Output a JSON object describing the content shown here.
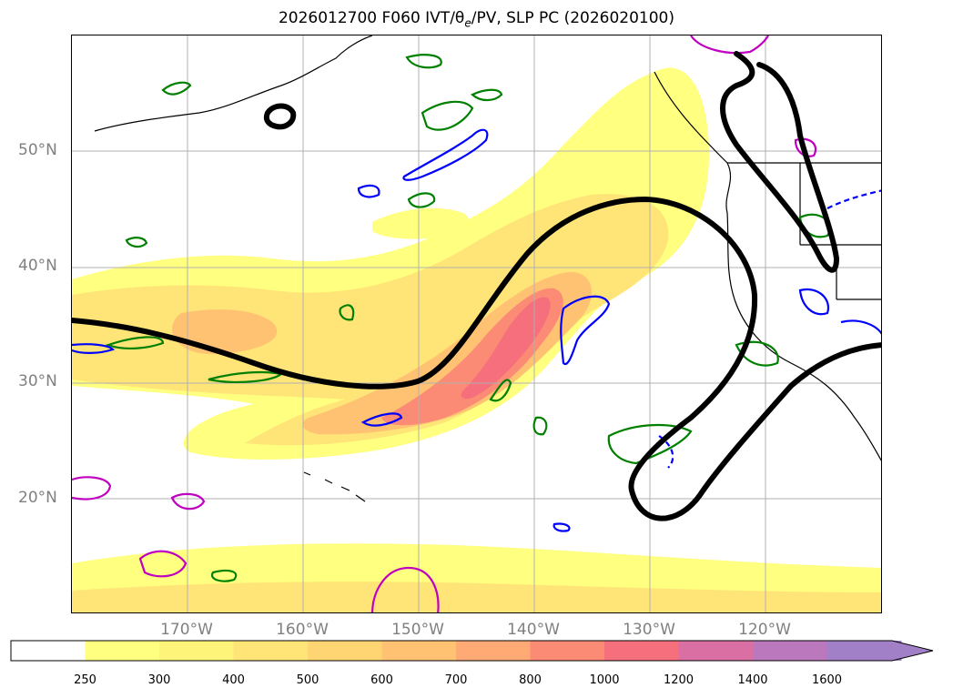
{
  "title_prefix": "2026012700 F060 IVT/θ",
  "title_sub": "e",
  "title_suffix": "/PV, SLP PC (2026020100)",
  "map": {
    "latitude_labels": [
      "50°N",
      "40°N",
      "30°N",
      "20°N"
    ],
    "longitude_labels": [
      "170°W",
      "160°W",
      "150°W",
      "140°W",
      "130°W",
      "120°W"
    ],
    "grid": true
  },
  "colorbar": {
    "ticks": [
      "250",
      "300",
      "400",
      "500",
      "600",
      "700",
      "800",
      "1000",
      "1200",
      "1400",
      "1600"
    ],
    "colors": [
      "#ffff80",
      "#fff47a",
      "#ffe577",
      "#ffd574",
      "#ffc273",
      "#ffa975",
      "#fc8b76",
      "#f56f7d",
      "#d96fa3",
      "#bb78bd",
      "#a280c8"
    ],
    "extend": "max"
  },
  "legend_colors": {
    "ivt_fill": "#ffe577",
    "pv_contour_green": "#008000",
    "theta_e_contour_blue": "#0000ff",
    "magenta_contour": "#c000c0",
    "slp_pc_contour": "#000000",
    "coastline": "#000000",
    "gridline": "#b0b0b0"
  }
}
